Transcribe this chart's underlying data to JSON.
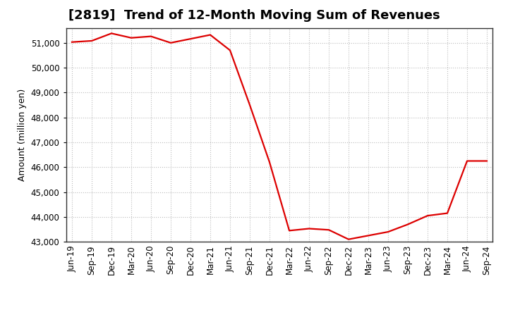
{
  "title": "[2819]  Trend of 12-Month Moving Sum of Revenues",
  "ylabel": "Amount (million yen)",
  "x_labels": [
    "Jun-19",
    "Sep-19",
    "Dec-19",
    "Mar-20",
    "Jun-20",
    "Sep-20",
    "Dec-20",
    "Mar-21",
    "Jun-21",
    "Sep-21",
    "Dec-21",
    "Mar-22",
    "Jun-22",
    "Sep-22",
    "Dec-22",
    "Mar-23",
    "Jun-23",
    "Sep-23",
    "Dec-23",
    "Mar-24",
    "Jun-24",
    "Sep-24"
  ],
  "values": [
    51030,
    51080,
    51380,
    51200,
    51260,
    51000,
    51160,
    51320,
    50700,
    48500,
    46200,
    43450,
    43530,
    43480,
    43100,
    43250,
    43400,
    43700,
    44050,
    44150,
    46250,
    46250
  ],
  "line_color": "#dd0000",
  "background_color": "#ffffff",
  "grid_color": "#bbbbbb",
  "ylim": [
    43000,
    51600
  ],
  "yticks": [
    43000,
    44000,
    45000,
    46000,
    47000,
    48000,
    49000,
    50000,
    51000
  ],
  "title_fontsize": 13,
  "axis_label_fontsize": 9,
  "tick_fontsize": 8.5
}
